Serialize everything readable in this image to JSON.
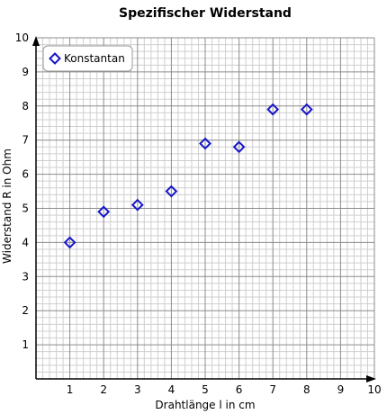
{
  "chart_data": {
    "type": "scatter",
    "title": "Spezifischer Widerstand",
    "xlabel": "Drahtlänge l in cm",
    "ylabel": "Widerstand R in Ohm",
    "xlim": [
      0,
      10
    ],
    "ylim": [
      0,
      10
    ],
    "x_ticks": [
      1,
      2,
      3,
      4,
      5,
      6,
      7,
      8,
      9,
      10
    ],
    "y_ticks": [
      1,
      2,
      3,
      4,
      5,
      6,
      7,
      8,
      9,
      10
    ],
    "grid": true,
    "minor_grid_per_unit": 5,
    "legend_position": "top-left",
    "series": [
      {
        "name": "Konstantan",
        "marker": "diamond-open",
        "color": "#1515c8",
        "points": [
          {
            "x": 1,
            "y": 4.0
          },
          {
            "x": 2,
            "y": 4.9
          },
          {
            "x": 3,
            "y": 5.1
          },
          {
            "x": 4,
            "y": 5.5
          },
          {
            "x": 5,
            "y": 6.9
          },
          {
            "x": 6,
            "y": 6.8
          },
          {
            "x": 7,
            "y": 7.9
          },
          {
            "x": 8,
            "y": 7.9
          }
        ]
      }
    ],
    "colors": {
      "minor_grid": "#cfcfcf",
      "major_grid": "#8c8c8c",
      "axis": "#000000"
    }
  }
}
